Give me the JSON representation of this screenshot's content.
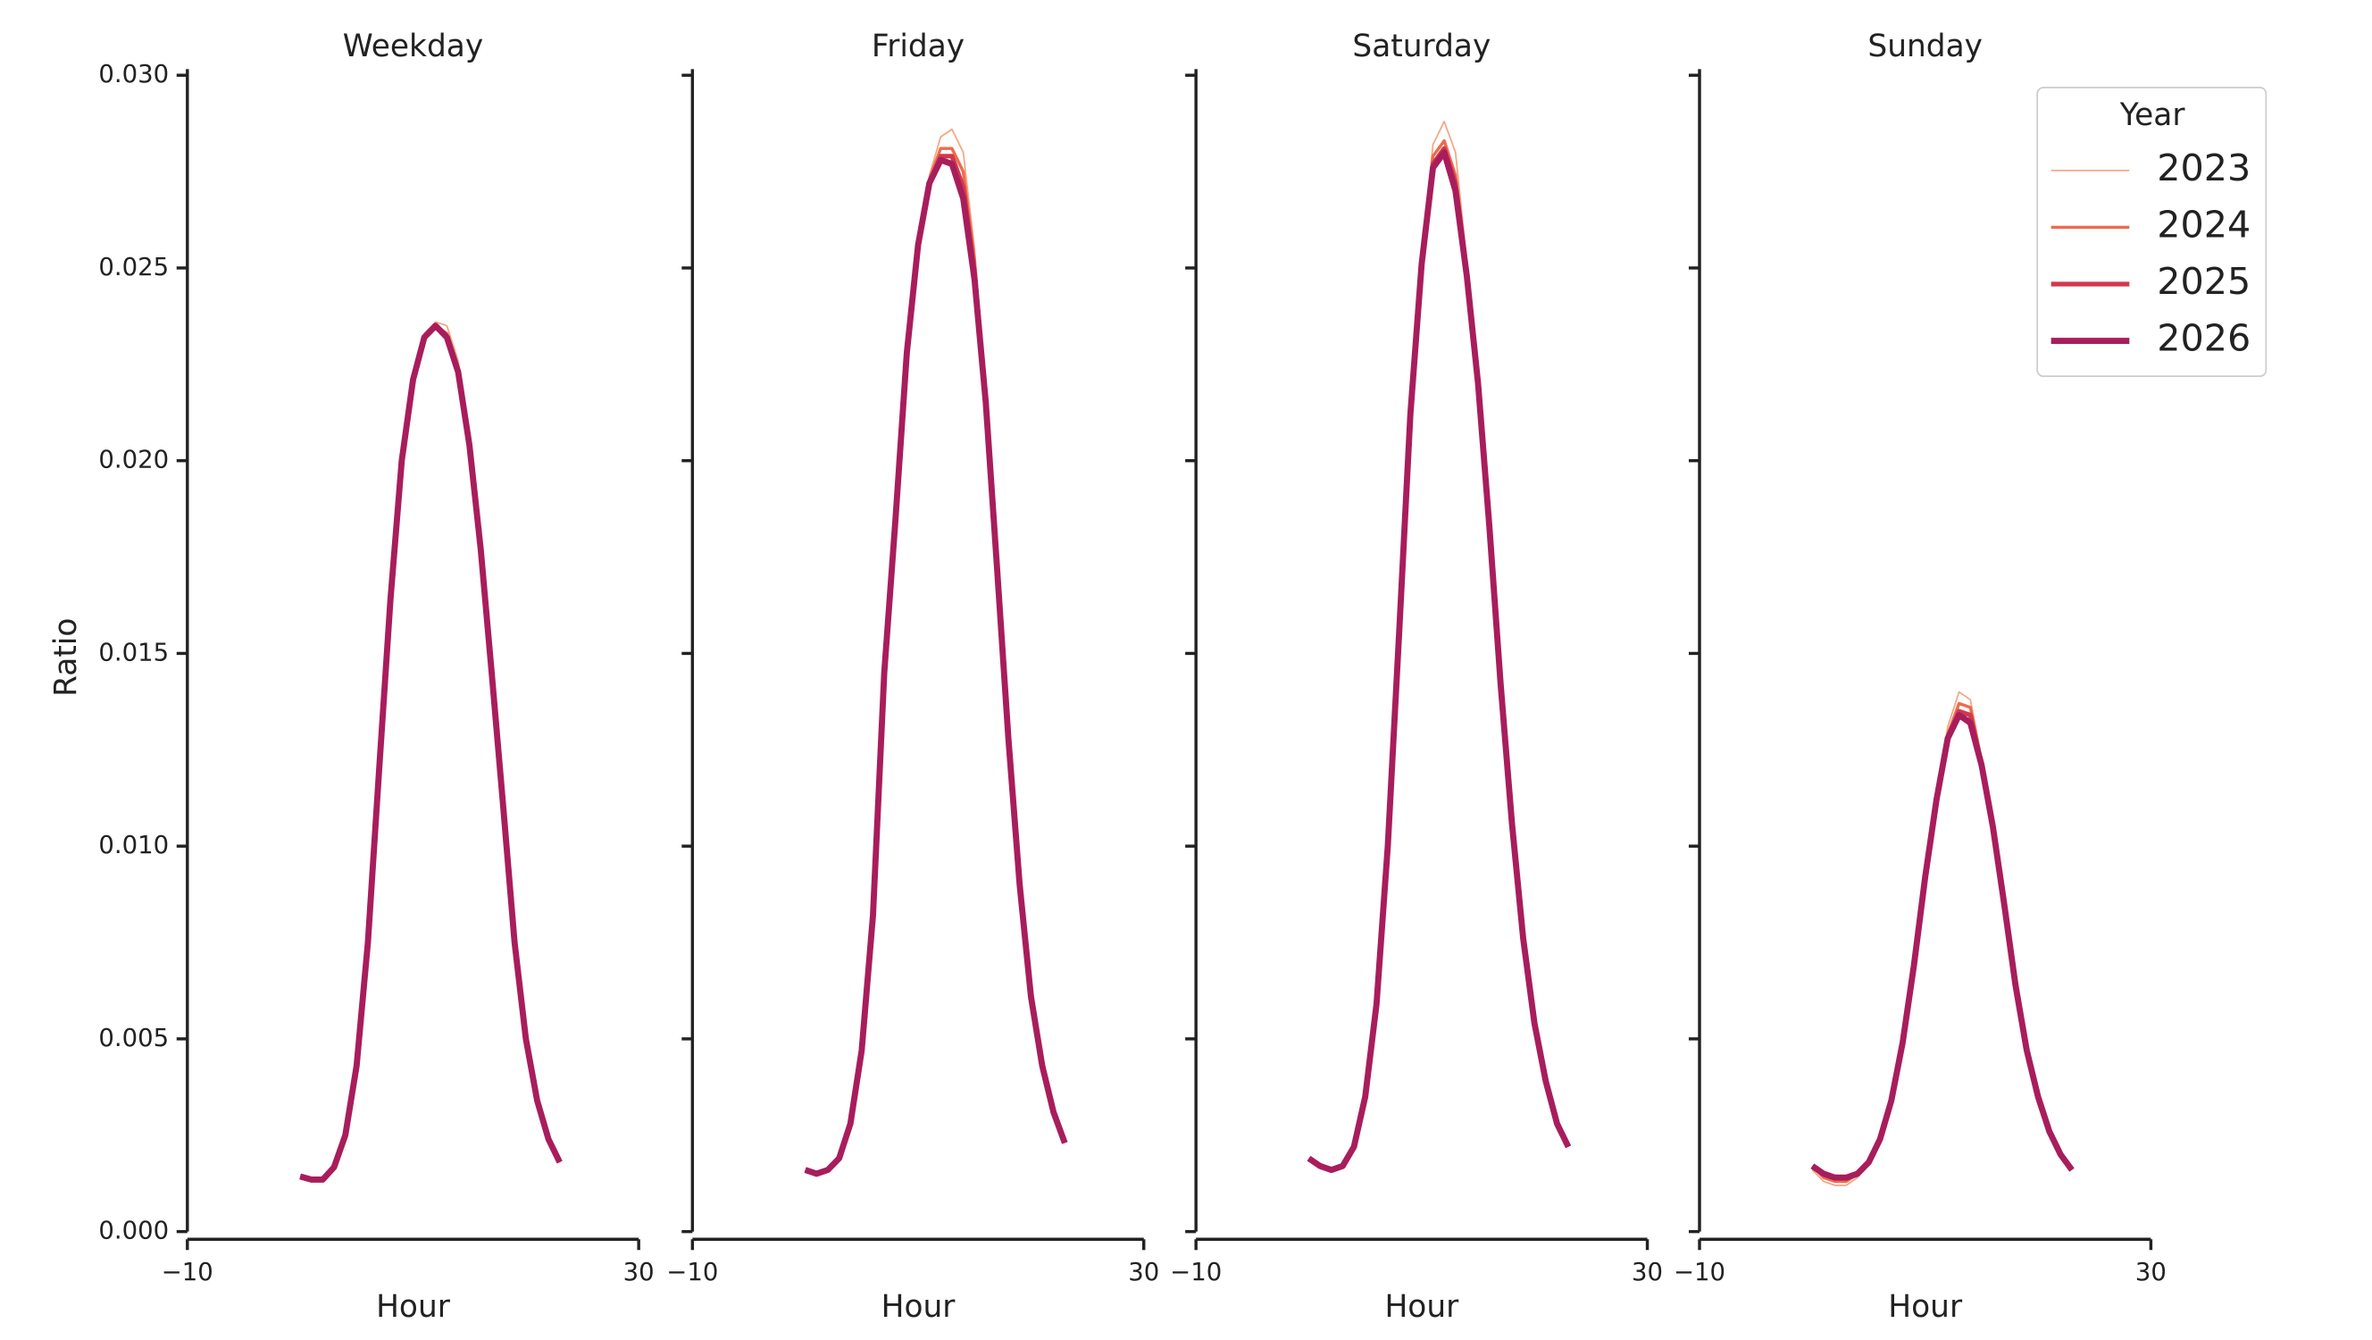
{
  "chart_data": [
    {
      "type": "line",
      "title": "Weekday",
      "x_label": "Hour",
      "y_label": "Ratio",
      "xlim": [
        -10,
        30
      ],
      "xticks": [
        {
          "value": -10,
          "label": "−10"
        },
        30
      ],
      "ylim": [
        0,
        0.03
      ],
      "yticks": [
        {
          "value": 0,
          "label": "0.000"
        },
        {
          "value": 0.005,
          "label": "0.005"
        },
        {
          "value": 0.01,
          "label": "0.010"
        },
        {
          "value": 0.015,
          "label": "0.015"
        },
        {
          "value": 0.02,
          "label": "0.020"
        },
        {
          "value": 0.025,
          "label": "0.025"
        },
        {
          "value": 0.03,
          "label": "0.030"
        }
      ],
      "x": [
        0,
        1,
        2,
        3,
        4,
        5,
        6,
        7,
        8,
        9,
        10,
        11,
        12,
        13,
        14,
        15,
        16,
        17,
        18,
        19,
        20,
        21,
        22,
        23
      ],
      "series": [
        {
          "name": "2023",
          "color": "#f4a582",
          "values": [
            0.00143,
            0.00135,
            0.00135,
            0.00167,
            0.0025,
            0.0043,
            0.0075,
            0.012,
            0.0164,
            0.02,
            0.0221,
            0.0233,
            0.0236,
            0.0235,
            0.0226,
            0.0205,
            0.0177,
            0.0144,
            0.011,
            0.0075,
            0.005,
            0.0034,
            0.0024,
            0.0018
          ]
        },
        {
          "name": "2024",
          "color": "#ec6c4e",
          "values": [
            0.00143,
            0.00135,
            0.00135,
            0.00167,
            0.0025,
            0.0043,
            0.0075,
            0.012,
            0.0164,
            0.02,
            0.0221,
            0.0232,
            0.0235,
            0.0233,
            0.0224,
            0.0204,
            0.0177,
            0.0144,
            0.011,
            0.0075,
            0.005,
            0.0034,
            0.0024,
            0.0018
          ]
        },
        {
          "name": "2025",
          "color": "#d1394c",
          "values": [
            0.00143,
            0.00135,
            0.00135,
            0.00167,
            0.0025,
            0.0043,
            0.0075,
            0.012,
            0.0164,
            0.02,
            0.0221,
            0.0232,
            0.0235,
            0.0232,
            0.0223,
            0.0204,
            0.0177,
            0.0144,
            0.011,
            0.0075,
            0.005,
            0.0034,
            0.0024,
            0.0018
          ]
        },
        {
          "name": "2026",
          "color": "#a81d5c",
          "values": [
            0.00143,
            0.00135,
            0.00135,
            0.00167,
            0.0025,
            0.0043,
            0.0075,
            0.012,
            0.0164,
            0.02,
            0.0221,
            0.0232,
            0.0235,
            0.0232,
            0.0223,
            0.0204,
            0.0177,
            0.0144,
            0.011,
            0.0075,
            0.005,
            0.0034,
            0.0024,
            0.0018
          ]
        }
      ]
    },
    {
      "type": "line",
      "title": "Friday",
      "x_label": "Hour",
      "xlim": [
        -10,
        30
      ],
      "xticks": [
        {
          "value": -10,
          "label": "−10"
        },
        30
      ],
      "x": [
        0,
        1,
        2,
        3,
        4,
        5,
        6,
        7,
        8,
        9,
        10,
        11,
        12,
        13,
        14,
        15,
        16,
        17,
        18,
        19,
        20,
        21,
        22,
        23
      ],
      "series": [
        {
          "name": "2023",
          "color": "#f4a582",
          "values": [
            0.0016,
            0.0015,
            0.0016,
            0.0019,
            0.0028,
            0.0047,
            0.0082,
            0.0145,
            0.0185,
            0.0228,
            0.0257,
            0.0274,
            0.0284,
            0.0286,
            0.028,
            0.0255,
            0.0218,
            0.0173,
            0.0128,
            0.009,
            0.0061,
            0.0043,
            0.0031,
            0.0023
          ]
        },
        {
          "name": "2024",
          "color": "#ec6c4e",
          "values": [
            0.0016,
            0.0015,
            0.0016,
            0.0019,
            0.0028,
            0.0047,
            0.0082,
            0.0145,
            0.0185,
            0.0228,
            0.0256,
            0.0273,
            0.0281,
            0.0281,
            0.0275,
            0.0252,
            0.0217,
            0.0172,
            0.0128,
            0.009,
            0.0061,
            0.0043,
            0.0031,
            0.0023
          ]
        },
        {
          "name": "2025",
          "color": "#d1394c",
          "values": [
            0.0016,
            0.0015,
            0.0016,
            0.0019,
            0.0028,
            0.0047,
            0.0082,
            0.0145,
            0.0185,
            0.0228,
            0.0256,
            0.0272,
            0.0279,
            0.0279,
            0.0271,
            0.0249,
            0.0216,
            0.0172,
            0.0128,
            0.009,
            0.0061,
            0.0043,
            0.0031,
            0.0023
          ]
        },
        {
          "name": "2026",
          "color": "#a81d5c",
          "values": [
            0.0016,
            0.0015,
            0.0016,
            0.0019,
            0.0028,
            0.0047,
            0.0082,
            0.0145,
            0.0185,
            0.0228,
            0.0256,
            0.0272,
            0.0278,
            0.0277,
            0.0268,
            0.0247,
            0.0215,
            0.0172,
            0.0128,
            0.009,
            0.0061,
            0.0043,
            0.0031,
            0.0023
          ]
        }
      ]
    },
    {
      "type": "line",
      "title": "Saturday",
      "x_label": "Hour",
      "xlim": [
        -10,
        30
      ],
      "xticks": [
        {
          "value": -10,
          "label": "−10"
        },
        30
      ],
      "x": [
        0,
        1,
        2,
        3,
        4,
        5,
        6,
        7,
        8,
        9,
        10,
        11,
        12,
        13,
        14,
        15,
        16,
        17,
        18,
        19,
        20,
        21,
        22,
        23
      ],
      "series": [
        {
          "name": "2023",
          "color": "#f4a582",
          "values": [
            0.0019,
            0.0017,
            0.0016,
            0.0017,
            0.0022,
            0.0035,
            0.0059,
            0.01,
            0.0155,
            0.0212,
            0.0252,
            0.0282,
            0.0288,
            0.028,
            0.0252,
            0.0221,
            0.0183,
            0.0142,
            0.0106,
            0.0076,
            0.0054,
            0.0039,
            0.0028,
            0.0022
          ]
        },
        {
          "name": "2024",
          "color": "#ec6c4e",
          "values": [
            0.0019,
            0.0017,
            0.0016,
            0.0017,
            0.0022,
            0.0035,
            0.0059,
            0.01,
            0.0155,
            0.0212,
            0.0251,
            0.0279,
            0.0283,
            0.0274,
            0.025,
            0.022,
            0.0183,
            0.0142,
            0.0106,
            0.0076,
            0.0054,
            0.0039,
            0.0028,
            0.0022
          ]
        },
        {
          "name": "2025",
          "color": "#d1394c",
          "values": [
            0.0019,
            0.0017,
            0.0016,
            0.0017,
            0.0022,
            0.0035,
            0.0059,
            0.01,
            0.0155,
            0.0212,
            0.0251,
            0.0277,
            0.0281,
            0.0272,
            0.0249,
            0.022,
            0.0183,
            0.0142,
            0.0106,
            0.0076,
            0.0054,
            0.0039,
            0.0028,
            0.0022
          ]
        },
        {
          "name": "2026",
          "color": "#a81d5c",
          "values": [
            0.0019,
            0.0017,
            0.0016,
            0.0017,
            0.0022,
            0.0035,
            0.0059,
            0.01,
            0.0155,
            0.0212,
            0.0251,
            0.0276,
            0.028,
            0.027,
            0.0248,
            0.022,
            0.0183,
            0.0142,
            0.0106,
            0.0076,
            0.0054,
            0.0039,
            0.0028,
            0.0022
          ]
        }
      ]
    },
    {
      "type": "line",
      "title": "Sunday",
      "x_label": "Hour",
      "xlim": [
        -10,
        30
      ],
      "xticks": [
        {
          "value": -10,
          "label": "−10"
        },
        30
      ],
      "x": [
        0,
        1,
        2,
        3,
        4,
        5,
        6,
        7,
        8,
        9,
        10,
        11,
        12,
        13,
        14,
        15,
        16,
        17,
        18,
        19,
        20,
        21,
        22,
        23
      ],
      "legend_title": "Year",
      "legend": "upper right",
      "series": [
        {
          "name": "2023",
          "color": "#f4a582",
          "values": [
            0.0016,
            0.0013,
            0.0012,
            0.0012,
            0.0014,
            0.0018,
            0.0024,
            0.0034,
            0.0049,
            0.0069,
            0.0092,
            0.0113,
            0.0131,
            0.014,
            0.0138,
            0.0123,
            0.0106,
            0.0085,
            0.0064,
            0.0047,
            0.0035,
            0.0026,
            0.002,
            0.0016
          ]
        },
        {
          "name": "2024",
          "color": "#ec6c4e",
          "values": [
            0.0017,
            0.0014,
            0.0013,
            0.0013,
            0.0015,
            0.0018,
            0.0024,
            0.0034,
            0.0049,
            0.0069,
            0.0092,
            0.0112,
            0.0129,
            0.0137,
            0.0136,
            0.0122,
            0.0105,
            0.0085,
            0.0064,
            0.0047,
            0.0035,
            0.0026,
            0.002,
            0.0016
          ]
        },
        {
          "name": "2025",
          "color": "#d1394c",
          "values": [
            0.0017,
            0.0015,
            0.0014,
            0.0014,
            0.0015,
            0.0018,
            0.0024,
            0.0034,
            0.0049,
            0.0069,
            0.0092,
            0.0112,
            0.0128,
            0.0135,
            0.0134,
            0.0121,
            0.0105,
            0.0085,
            0.0064,
            0.0047,
            0.0035,
            0.0026,
            0.002,
            0.0016
          ]
        },
        {
          "name": "2026",
          "color": "#a81d5c",
          "values": [
            0.0017,
            0.0015,
            0.0014,
            0.0014,
            0.0015,
            0.0018,
            0.0024,
            0.0034,
            0.0049,
            0.0069,
            0.0092,
            0.0112,
            0.0128,
            0.0134,
            0.0132,
            0.0121,
            0.0105,
            0.0085,
            0.0064,
            0.0047,
            0.0035,
            0.0026,
            0.002,
            0.0016
          ]
        }
      ]
    }
  ]
}
